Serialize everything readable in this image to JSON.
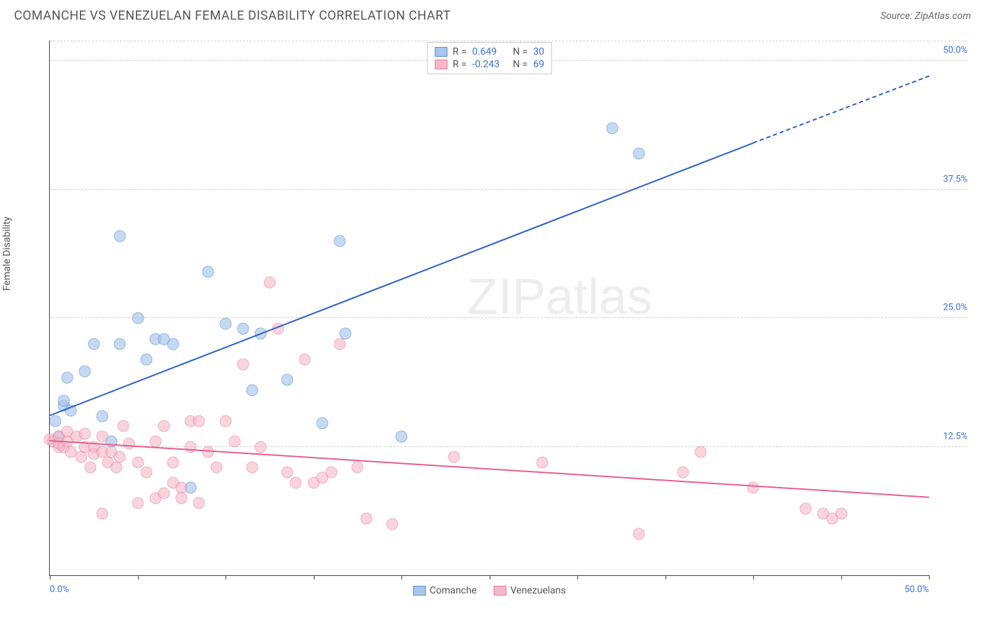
{
  "header": {
    "title": "COMANCHE VS VENEZUELAN FEMALE DISABILITY CORRELATION CHART",
    "source": "Source: ZipAtlas.com"
  },
  "chart": {
    "type": "scatter",
    "ylabel": "Female Disability",
    "watermark": "ZIPatlas",
    "background_color": "#ffffff",
    "grid_color": "#d0d0d0",
    "axis_color": "#444444",
    "label_fontsize": 14,
    "title_fontsize": 18,
    "xlim": [
      0,
      50
    ],
    "ylim": [
      0,
      52
    ],
    "xticks": [
      0,
      5,
      10,
      15,
      20,
      25,
      30,
      35,
      40,
      45,
      50
    ],
    "xtick_labels": {
      "0": "0.0%",
      "50": "50.0%"
    },
    "xtick_label_color": "#3b6fd6",
    "yticks": [
      12.5,
      25.0,
      37.5,
      50.0
    ],
    "ytick_labels": [
      "12.5%",
      "25.0%",
      "37.5%",
      "50.0%"
    ],
    "ytick_label_color": "#3b6fd6",
    "point_radius": 8.5,
    "point_border_width": 1,
    "series": [
      {
        "name": "Comanche",
        "fill": "#a8c5eb",
        "stroke": "#5b8fd6",
        "fill_opacity": 0.65,
        "regression": {
          "color": "#2f5fc7",
          "width": 2,
          "x1": 0,
          "y1": 15.5,
          "x2": 40,
          "y2": 42.0,
          "dash_x2": 50,
          "dash_y2": 48.5
        },
        "stats": {
          "R": "0.649",
          "N": "30"
        },
        "points": [
          [
            0.3,
            15.0
          ],
          [
            0.5,
            13.5
          ],
          [
            0.8,
            16.5
          ],
          [
            0.8,
            17.0
          ],
          [
            1.0,
            19.2
          ],
          [
            1.2,
            16.0
          ],
          [
            2.0,
            19.8
          ],
          [
            2.5,
            22.5
          ],
          [
            3.0,
            15.5
          ],
          [
            3.5,
            13.0
          ],
          [
            4.0,
            33.0
          ],
          [
            4.0,
            22.5
          ],
          [
            5.0,
            25.0
          ],
          [
            5.5,
            21.0
          ],
          [
            6.0,
            23.0
          ],
          [
            6.5,
            23.0
          ],
          [
            7.0,
            22.5
          ],
          [
            8.0,
            8.5
          ],
          [
            9.0,
            29.5
          ],
          [
            10.0,
            24.5
          ],
          [
            11.0,
            24.0
          ],
          [
            11.5,
            18.0
          ],
          [
            12.0,
            23.5
          ],
          [
            13.5,
            19.0
          ],
          [
            15.5,
            14.8
          ],
          [
            16.5,
            32.5
          ],
          [
            16.8,
            23.5
          ],
          [
            20.0,
            13.5
          ],
          [
            32.0,
            43.5
          ],
          [
            33.5,
            41.0
          ]
        ]
      },
      {
        "name": "Venezuelans",
        "fill": "#f5b8c8",
        "stroke": "#e87d9e",
        "fill_opacity": 0.6,
        "regression": {
          "color": "#e85f8a",
          "width": 2,
          "x1": 0,
          "y1": 13.0,
          "x2": 50,
          "y2": 7.5
        },
        "stats": {
          "R": "-0.243",
          "N": "69"
        },
        "points": [
          [
            0.0,
            13.2
          ],
          [
            0.2,
            13.0
          ],
          [
            0.5,
            13.5
          ],
          [
            0.5,
            12.5
          ],
          [
            0.5,
            12.8
          ],
          [
            0.8,
            12.5
          ],
          [
            1.0,
            13.0
          ],
          [
            1.0,
            14.0
          ],
          [
            1.2,
            12.0
          ],
          [
            1.5,
            13.5
          ],
          [
            1.8,
            11.5
          ],
          [
            2.0,
            12.5
          ],
          [
            2.0,
            13.8
          ],
          [
            2.3,
            10.5
          ],
          [
            2.5,
            12.5
          ],
          [
            2.5,
            11.8
          ],
          [
            3.0,
            13.5
          ],
          [
            3.0,
            12.0
          ],
          [
            3.0,
            6.0
          ],
          [
            3.3,
            11.0
          ],
          [
            3.5,
            12.0
          ],
          [
            3.8,
            10.5
          ],
          [
            4.0,
            11.5
          ],
          [
            4.2,
            14.5
          ],
          [
            4.5,
            12.8
          ],
          [
            5.0,
            11.0
          ],
          [
            5.0,
            7.0
          ],
          [
            5.5,
            10.0
          ],
          [
            6.0,
            13.0
          ],
          [
            6.0,
            7.5
          ],
          [
            6.5,
            8.0
          ],
          [
            6.5,
            14.5
          ],
          [
            7.0,
            9.0
          ],
          [
            7.0,
            11.0
          ],
          [
            7.5,
            8.5
          ],
          [
            7.5,
            7.5
          ],
          [
            8.0,
            15.0
          ],
          [
            8.0,
            12.5
          ],
          [
            8.5,
            7.0
          ],
          [
            8.5,
            15.0
          ],
          [
            9.0,
            12.0
          ],
          [
            9.5,
            10.5
          ],
          [
            10.0,
            15.0
          ],
          [
            10.5,
            13.0
          ],
          [
            11.0,
            20.5
          ],
          [
            11.5,
            10.5
          ],
          [
            12.0,
            12.5
          ],
          [
            12.5,
            28.5
          ],
          [
            13.0,
            24.0
          ],
          [
            13.5,
            10.0
          ],
          [
            14.0,
            9.0
          ],
          [
            14.5,
            21.0
          ],
          [
            15.0,
            9.0
          ],
          [
            15.5,
            9.5
          ],
          [
            16.0,
            10.0
          ],
          [
            16.5,
            22.5
          ],
          [
            17.5,
            10.5
          ],
          [
            18.0,
            5.5
          ],
          [
            19.5,
            5.0
          ],
          [
            23.0,
            11.5
          ],
          [
            28.0,
            11.0
          ],
          [
            33.5,
            4.0
          ],
          [
            36.0,
            10.0
          ],
          [
            37.0,
            12.0
          ],
          [
            40.0,
            8.5
          ],
          [
            43.0,
            6.5
          ],
          [
            44.0,
            6.0
          ],
          [
            44.5,
            5.5
          ],
          [
            45.0,
            6.0
          ]
        ]
      }
    ],
    "stats_legend": {
      "R_label": "R =",
      "N_label": "N =",
      "value_color": "#3b6fd6",
      "border_color": "#c8c8c8"
    }
  }
}
